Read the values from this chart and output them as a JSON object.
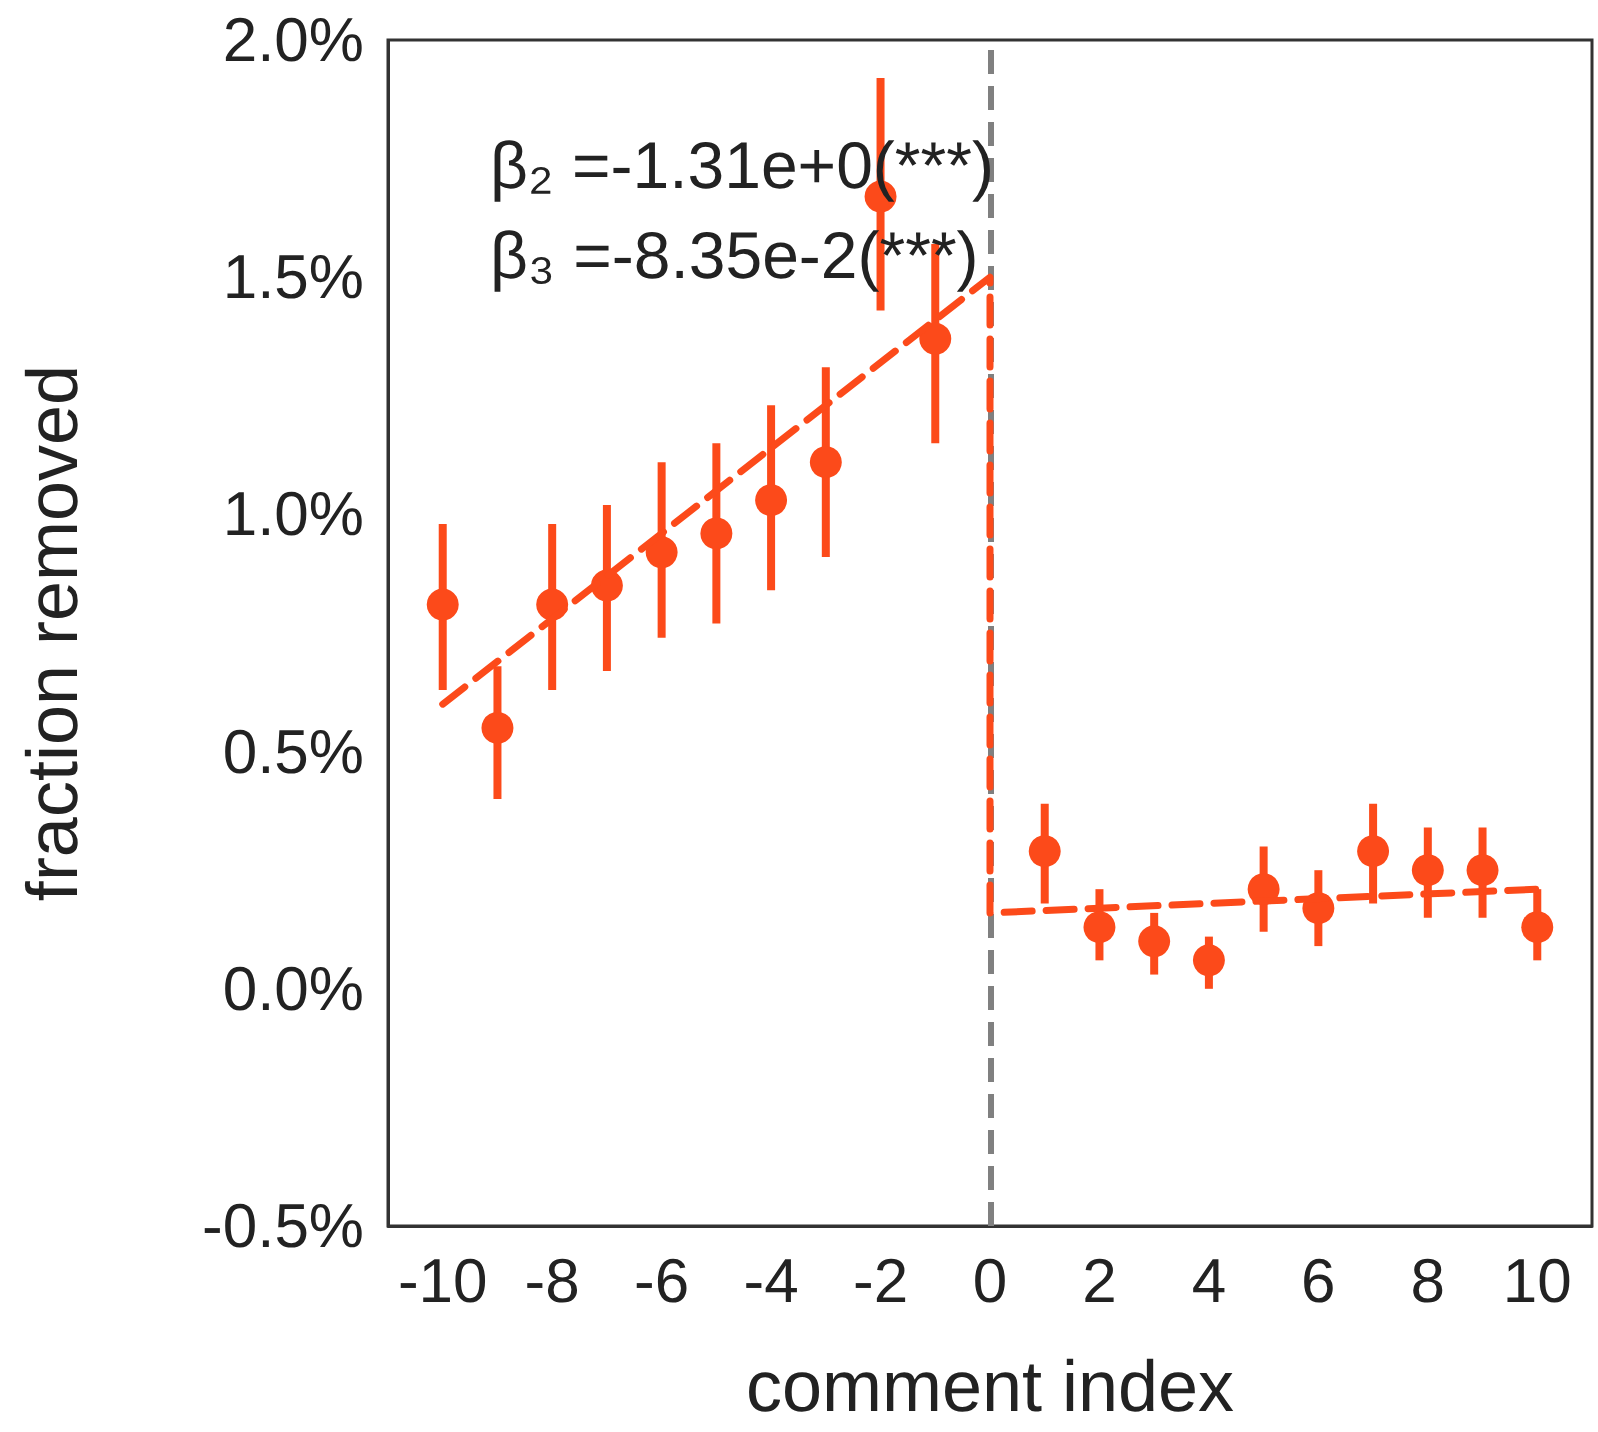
{
  "chart_data": {
    "type": "scatter",
    "xlabel": "comment index",
    "ylabel": "fraction removed",
    "annotations": [
      "β₂ =-1.31e+0(***)",
      "β₃ =-8.35e-2(***)"
    ],
    "series": [
      {
        "type": "scatter",
        "color": "#fc4a1a",
        "marker": "circle",
        "x": [
          -10,
          -9,
          -8,
          -7,
          -6,
          -5,
          -4,
          -3,
          -2,
          -1,
          1,
          2,
          3,
          4,
          5,
          6,
          7,
          8,
          9,
          10
        ],
        "values": [
          0.81,
          0.55,
          0.81,
          0.85,
          0.92,
          0.96,
          1.03,
          1.11,
          1.67,
          1.37,
          0.29,
          0.13,
          0.1,
          0.06,
          0.21,
          0.17,
          0.29,
          0.25,
          0.25,
          0.13
        ],
        "errors": [
          [
            0.63,
            0.98
          ],
          [
            0.4,
            0.68
          ],
          [
            0.63,
            0.98
          ],
          [
            0.67,
            1.02
          ],
          [
            0.74,
            1.11
          ],
          [
            0.77,
            1.15
          ],
          [
            0.84,
            1.23
          ],
          [
            0.91,
            1.31
          ],
          [
            1.43,
            1.92
          ],
          [
            1.15,
            1.57
          ],
          [
            0.18,
            0.39
          ],
          [
            0.06,
            0.21
          ],
          [
            0.03,
            0.16
          ],
          [
            0.0,
            0.11
          ],
          [
            0.12,
            0.3
          ],
          [
            0.09,
            0.25
          ],
          [
            0.18,
            0.39
          ],
          [
            0.15,
            0.34
          ],
          [
            0.15,
            0.34
          ],
          [
            0.06,
            0.21
          ]
        ]
      },
      {
        "type": "line",
        "color": "#fc4a1a",
        "line_style": "dashed",
        "x": [
          -10,
          0,
          0,
          10
        ],
        "values": [
          0.6,
          1.5,
          0.16,
          0.21
        ]
      }
    ],
    "ref_lines": [
      {
        "axis": "x",
        "value": 0,
        "color": "#808080",
        "line_style": "dashed"
      }
    ],
    "xlim": [
      -11,
      11
    ],
    "xticks": [
      -10,
      -8,
      -6,
      -4,
      -2,
      0,
      2,
      4,
      6,
      8,
      10
    ],
    "ylim": [
      -0.5,
      2.0
    ],
    "yticks": [
      {
        "value": -0.5,
        "label": "-0.5%"
      },
      {
        "value": 0,
        "label": "0.0%"
      },
      {
        "value": 0.5,
        "label": "0.5%"
      },
      {
        "value": 1.0,
        "label": "1.0%"
      },
      {
        "value": 1.5,
        "label": "1.5%"
      },
      {
        "value": 2.0,
        "label": "2.0%"
      }
    ],
    "grid": false
  }
}
